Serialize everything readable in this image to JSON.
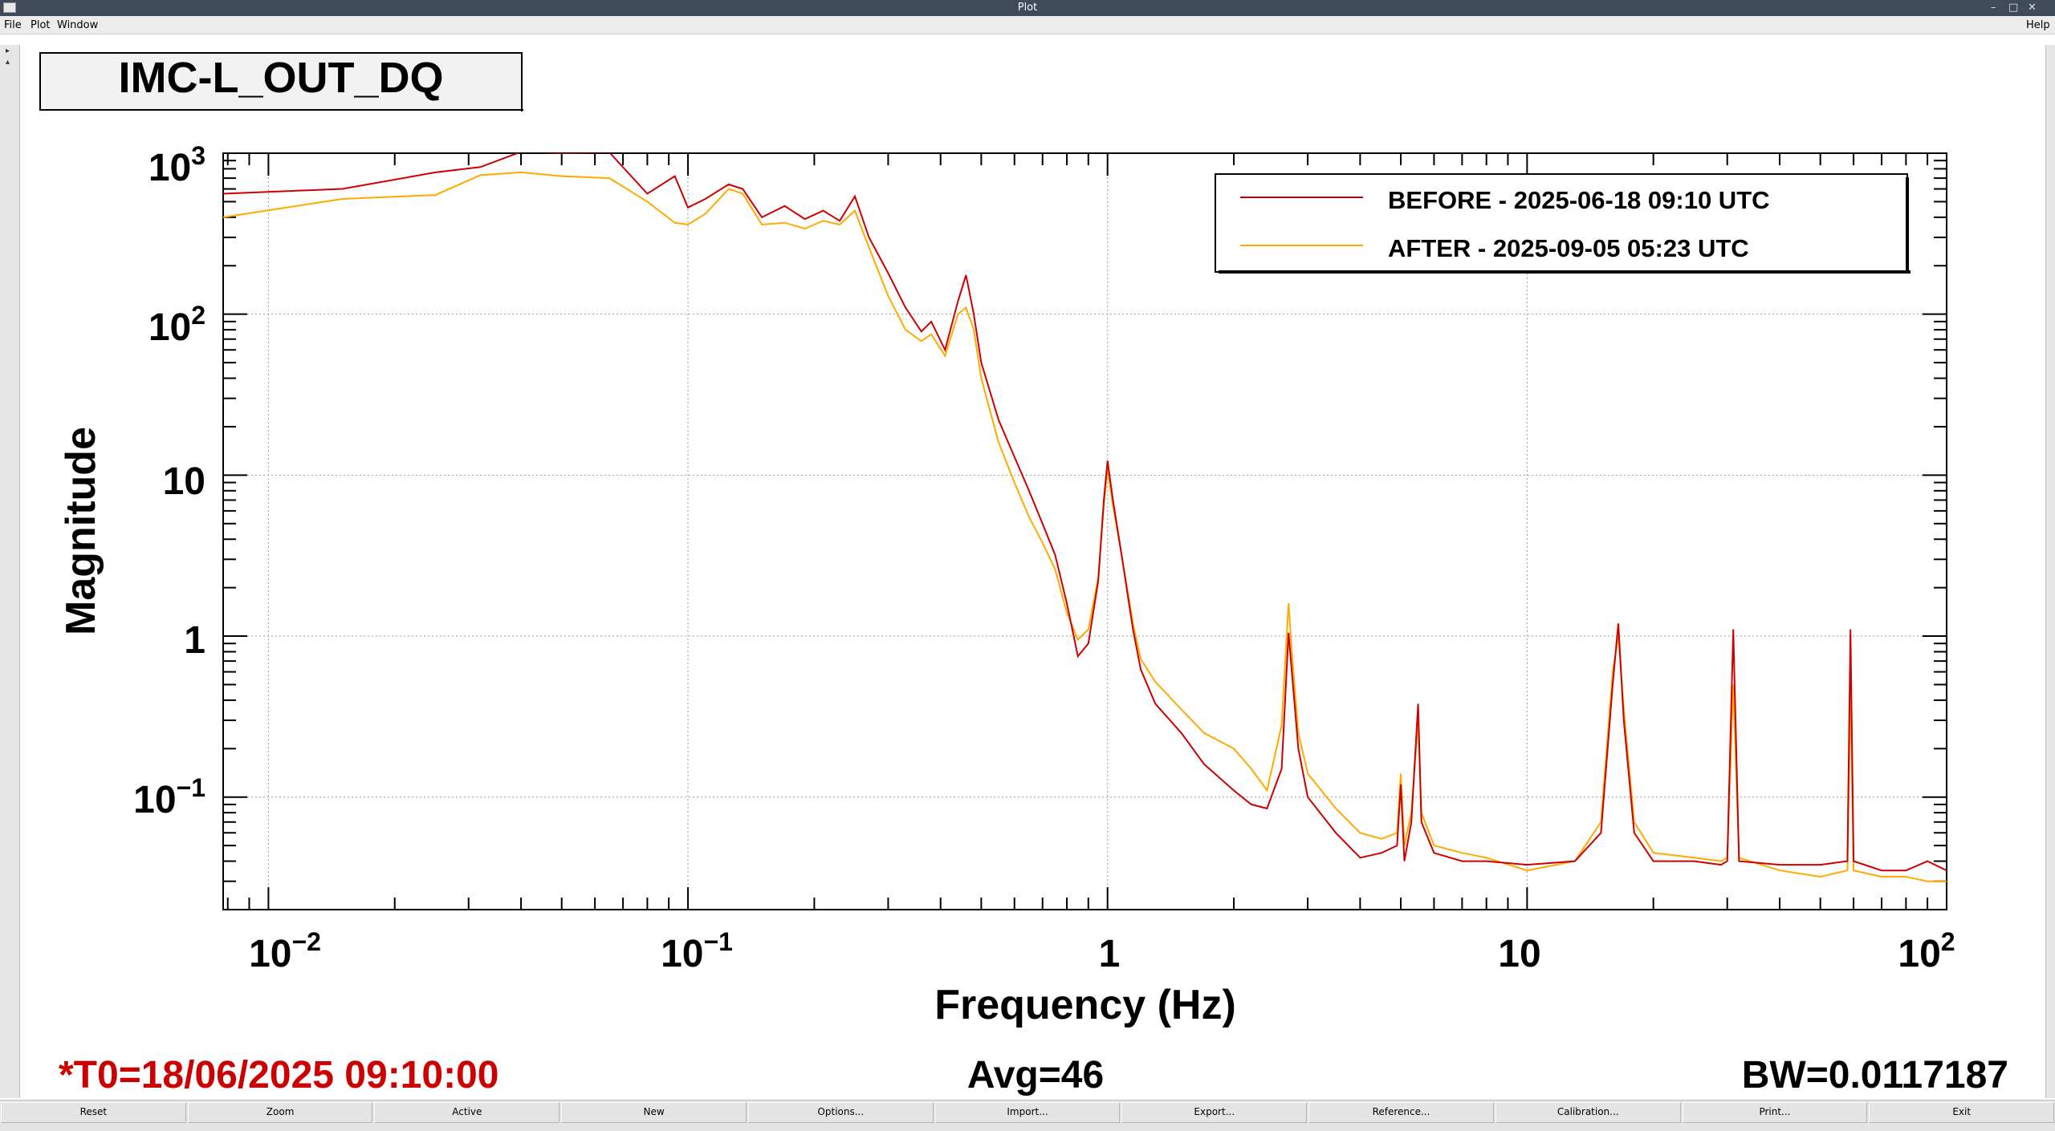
{
  "window": {
    "title": "Plot"
  },
  "menu": {
    "file": "File",
    "plot": "Plot",
    "window": "Window",
    "help": "Help"
  },
  "plot_title": "IMC-L_OUT_DQ",
  "footer": {
    "t0": "*T0=18/06/2025 09:10:00",
    "avg": "Avg=46",
    "bw": "BW=0.0117187"
  },
  "buttons": [
    "Reset",
    "Zoom",
    "Active",
    "New",
    "Options...",
    "Import...",
    "Export...",
    "Reference...",
    "Calibration...",
    "Print...",
    "Exit"
  ],
  "colors": {
    "before": "#cc0000",
    "after": "#ffaa00",
    "t0_text": "#cc0000",
    "titlebar": "#3f4a5a"
  },
  "chart_data": {
    "type": "line",
    "xlabel": "Frequency (Hz)",
    "ylabel": "Magnitude",
    "xscale": "log",
    "yscale": "log",
    "xlim": [
      0.0078,
      100
    ],
    "ylim": [
      0.02,
      1000
    ],
    "grid": true,
    "legend_position": "top-right",
    "x_tick_labels": [
      "10^-2",
      "10^-1",
      "1",
      "10",
      "10^2"
    ],
    "y_tick_labels": [
      "10^-1",
      "1",
      "10",
      "10^2",
      "10^3"
    ],
    "series": [
      {
        "name": "BEFORE - 2025-06-18 09:10 UTC",
        "points": [
          [
            0.0078,
            560
          ],
          [
            0.015,
            600
          ],
          [
            0.025,
            760
          ],
          [
            0.032,
            820
          ],
          [
            0.04,
            1020
          ],
          [
            0.05,
            1000
          ],
          [
            0.065,
            1010
          ],
          [
            0.08,
            560
          ],
          [
            0.093,
            720
          ],
          [
            0.1,
            460
          ],
          [
            0.11,
            520
          ],
          [
            0.125,
            640
          ],
          [
            0.135,
            600
          ],
          [
            0.15,
            400
          ],
          [
            0.17,
            470
          ],
          [
            0.19,
            390
          ],
          [
            0.21,
            440
          ],
          [
            0.23,
            380
          ],
          [
            0.25,
            540
          ],
          [
            0.27,
            300
          ],
          [
            0.3,
            180
          ],
          [
            0.33,
            110
          ],
          [
            0.36,
            78
          ],
          [
            0.38,
            90
          ],
          [
            0.41,
            60
          ],
          [
            0.44,
            120
          ],
          [
            0.46,
            175
          ],
          [
            0.48,
            100
          ],
          [
            0.5,
            50
          ],
          [
            0.55,
            22
          ],
          [
            0.6,
            13
          ],
          [
            0.65,
            8
          ],
          [
            0.7,
            5
          ],
          [
            0.75,
            3.2
          ],
          [
            0.8,
            1.6
          ],
          [
            0.85,
            0.75
          ],
          [
            0.9,
            0.9
          ],
          [
            0.95,
            2.2
          ],
          [
            0.98,
            7
          ],
          [
            1.0,
            12.3
          ],
          [
            1.03,
            7
          ],
          [
            1.08,
            3.2
          ],
          [
            1.15,
            1.1
          ],
          [
            1.2,
            0.62
          ],
          [
            1.3,
            0.38
          ],
          [
            1.5,
            0.25
          ],
          [
            1.7,
            0.16
          ],
          [
            2.0,
            0.11
          ],
          [
            2.2,
            0.09
          ],
          [
            2.4,
            0.085
          ],
          [
            2.6,
            0.15
          ],
          [
            2.7,
            1.05
          ],
          [
            2.75,
            0.6
          ],
          [
            2.85,
            0.2
          ],
          [
            3.0,
            0.1
          ],
          [
            3.5,
            0.06
          ],
          [
            4.0,
            0.042
          ],
          [
            4.5,
            0.045
          ],
          [
            4.9,
            0.05
          ],
          [
            5.0,
            0.12
          ],
          [
            5.1,
            0.04
          ],
          [
            5.3,
            0.07
          ],
          [
            5.5,
            0.38
          ],
          [
            5.6,
            0.07
          ],
          [
            6.0,
            0.045
          ],
          [
            7.0,
            0.04
          ],
          [
            8.0,
            0.04
          ],
          [
            10,
            0.038
          ],
          [
            13,
            0.04
          ],
          [
            15,
            0.06
          ],
          [
            16,
            0.5
          ],
          [
            16.5,
            1.2
          ],
          [
            17,
            0.3
          ],
          [
            18,
            0.06
          ],
          [
            20,
            0.04
          ],
          [
            25,
            0.04
          ],
          [
            29,
            0.038
          ],
          [
            30,
            0.04
          ],
          [
            31,
            1.1
          ],
          [
            32,
            0.04
          ],
          [
            40,
            0.038
          ],
          [
            50,
            0.038
          ],
          [
            58,
            0.04
          ],
          [
            59,
            1.1
          ],
          [
            60,
            0.04
          ],
          [
            70,
            0.035
          ],
          [
            80,
            0.035
          ],
          [
            90,
            0.04
          ],
          [
            100,
            0.035
          ]
        ]
      },
      {
        "name": "AFTER - 2025-09-05 05:23 UTC",
        "points": [
          [
            0.0078,
            400
          ],
          [
            0.015,
            520
          ],
          [
            0.025,
            550
          ],
          [
            0.032,
            730
          ],
          [
            0.04,
            760
          ],
          [
            0.05,
            720
          ],
          [
            0.065,
            700
          ],
          [
            0.08,
            500
          ],
          [
            0.093,
            370
          ],
          [
            0.1,
            360
          ],
          [
            0.11,
            420
          ],
          [
            0.125,
            600
          ],
          [
            0.135,
            560
          ],
          [
            0.15,
            360
          ],
          [
            0.17,
            370
          ],
          [
            0.19,
            340
          ],
          [
            0.21,
            380
          ],
          [
            0.23,
            360
          ],
          [
            0.25,
            440
          ],
          [
            0.27,
            260
          ],
          [
            0.3,
            130
          ],
          [
            0.33,
            80
          ],
          [
            0.36,
            68
          ],
          [
            0.38,
            75
          ],
          [
            0.41,
            55
          ],
          [
            0.44,
            100
          ],
          [
            0.46,
            110
          ],
          [
            0.48,
            80
          ],
          [
            0.5,
            40
          ],
          [
            0.55,
            16
          ],
          [
            0.6,
            9
          ],
          [
            0.65,
            5.5
          ],
          [
            0.7,
            3.8
          ],
          [
            0.75,
            2.6
          ],
          [
            0.8,
            1.4
          ],
          [
            0.85,
            0.95
          ],
          [
            0.9,
            1.1
          ],
          [
            0.95,
            2.3
          ],
          [
            0.98,
            6.5
          ],
          [
            1.0,
            11
          ],
          [
            1.03,
            6.5
          ],
          [
            1.08,
            3.2
          ],
          [
            1.15,
            1.2
          ],
          [
            1.2,
            0.72
          ],
          [
            1.3,
            0.52
          ],
          [
            1.5,
            0.35
          ],
          [
            1.7,
            0.25
          ],
          [
            2.0,
            0.2
          ],
          [
            2.2,
            0.15
          ],
          [
            2.4,
            0.11
          ],
          [
            2.6,
            0.28
          ],
          [
            2.7,
            1.6
          ],
          [
            2.75,
            0.8
          ],
          [
            2.85,
            0.25
          ],
          [
            3.0,
            0.14
          ],
          [
            3.5,
            0.085
          ],
          [
            4.0,
            0.06
          ],
          [
            4.5,
            0.055
          ],
          [
            4.9,
            0.06
          ],
          [
            5.0,
            0.14
          ],
          [
            5.1,
            0.05
          ],
          [
            5.3,
            0.08
          ],
          [
            5.5,
            0.3
          ],
          [
            5.6,
            0.08
          ],
          [
            6.0,
            0.05
          ],
          [
            7.0,
            0.045
          ],
          [
            8.0,
            0.042
          ],
          [
            10,
            0.035
          ],
          [
            13,
            0.04
          ],
          [
            15,
            0.07
          ],
          [
            16,
            0.6
          ],
          [
            16.5,
            1.0
          ],
          [
            17,
            0.35
          ],
          [
            18,
            0.07
          ],
          [
            20,
            0.045
          ],
          [
            25,
            0.042
          ],
          [
            29,
            0.04
          ],
          [
            30,
            0.042
          ],
          [
            31,
            0.5
          ],
          [
            32,
            0.042
          ],
          [
            40,
            0.035
          ],
          [
            50,
            0.032
          ],
          [
            58,
            0.035
          ],
          [
            59,
            0.5
          ],
          [
            60,
            0.035
          ],
          [
            70,
            0.032
          ],
          [
            80,
            0.032
          ],
          [
            90,
            0.03
          ],
          [
            100,
            0.03
          ]
        ]
      }
    ]
  }
}
